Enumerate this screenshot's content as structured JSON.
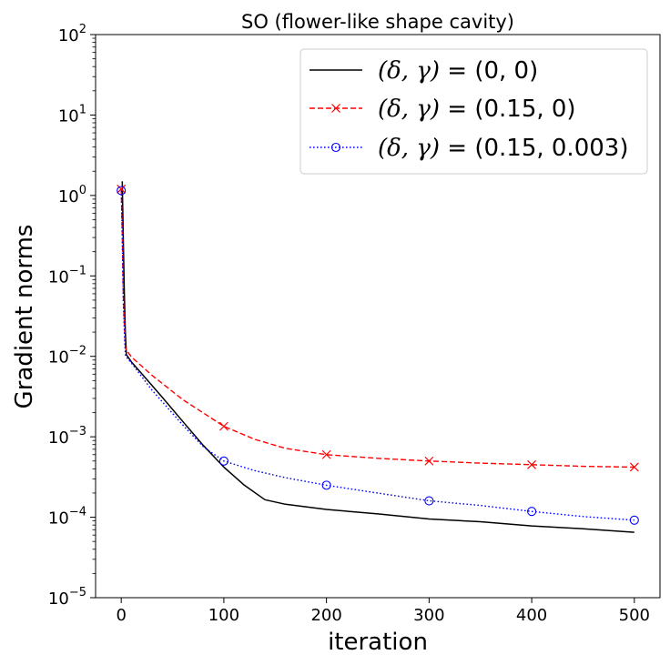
{
  "chart_data": {
    "type": "line",
    "title": "SO (flower-like shape cavity)",
    "xlabel": "iteration",
    "ylabel": "Gradient norms",
    "yscale": "log",
    "xlim": [
      -25,
      525
    ],
    "ylim": [
      1e-05,
      100
    ],
    "x_ticks": [
      0,
      100,
      200,
      300,
      400,
      500
    ],
    "x_tick_labels": [
      "0",
      "100",
      "200",
      "300",
      "400",
      "500"
    ],
    "y_ticks": [
      {
        "value": 100,
        "base": "10",
        "exp": "2"
      },
      {
        "value": 10,
        "base": "10",
        "exp": "1"
      },
      {
        "value": 1,
        "base": "10",
        "exp": "0"
      },
      {
        "value": 0.1,
        "base": "10",
        "exp": "−1"
      },
      {
        "value": 0.01,
        "base": "10",
        "exp": "−2"
      },
      {
        "value": 0.001,
        "base": "10",
        "exp": "−3"
      },
      {
        "value": 0.0001,
        "base": "10",
        "exp": "−4"
      },
      {
        "value": 1e-05,
        "base": "10",
        "exp": "−5"
      }
    ],
    "legend_position": "top-right",
    "series": [
      {
        "name": "(δ, γ) = (0, 0)",
        "legend_label": {
          "vars": "(δ, γ)",
          "eq": " = ",
          "val": "(0, 0)"
        },
        "color": "#000000",
        "line_style": "solid",
        "marker": "none",
        "x": [
          1,
          2,
          3,
          4,
          5,
          10,
          20,
          40,
          60,
          80,
          100,
          120,
          140,
          160,
          200,
          250,
          300,
          350,
          400,
          450,
          500
        ],
        "y": [
          1.5,
          0.3,
          0.06,
          0.02,
          0.0105,
          0.0085,
          0.0061,
          0.0031,
          0.00155,
          0.00078,
          0.00042,
          0.00025,
          0.000165,
          0.000145,
          0.000125,
          0.00011,
          9.5e-05,
          8.8e-05,
          7.8e-05,
          7.2e-05,
          6.5e-05
        ]
      },
      {
        "name": "(δ, γ) = (0.15, 0)",
        "legend_label": {
          "vars": "(δ, γ)",
          "eq": " = ",
          "val": "(0.15, 0)"
        },
        "color": "#ff0000",
        "line_style": "dashed",
        "marker": "x",
        "x": [
          0,
          1,
          2,
          3,
          4,
          5,
          10,
          30,
          60,
          100,
          130,
          160,
          200,
          250,
          300,
          350,
          400,
          450,
          500
        ],
        "y": [
          1.2,
          0.35,
          0.06,
          0.025,
          0.013,
          0.012,
          0.0098,
          0.0058,
          0.0029,
          0.00135,
          0.00093,
          0.00072,
          0.0006,
          0.00054,
          0.0005,
          0.00047,
          0.00045,
          0.00043,
          0.00042
        ],
        "marker_x": [
          0,
          100,
          200,
          300,
          400,
          500
        ],
        "marker_y": [
          1.2,
          0.00135,
          0.0006,
          0.0005,
          0.00045,
          0.00042
        ]
      },
      {
        "name": "(δ, γ) = (0.15, 0.003)",
        "legend_label": {
          "vars": "(δ, γ)",
          "eq": " = ",
          "val": "(0.15, 0.003)"
        },
        "color": "#0000ff",
        "line_style": "dotted",
        "marker": "circle",
        "x": [
          0,
          1,
          2,
          3,
          4,
          5,
          10,
          30,
          60,
          80,
          100,
          130,
          160,
          200,
          250,
          300,
          350,
          400,
          450,
          500
        ],
        "y": [
          1.15,
          0.3,
          0.05,
          0.02,
          0.0105,
          0.0098,
          0.0082,
          0.0038,
          0.0014,
          0.00075,
          0.0005,
          0.00038,
          0.00031,
          0.00025,
          0.0002,
          0.00016,
          0.00014,
          0.000118,
          0.000102,
          9.2e-05
        ],
        "marker_x": [
          0,
          100,
          200,
          300,
          400,
          500
        ],
        "marker_y": [
          1.15,
          0.0005,
          0.00025,
          0.00016,
          0.000118,
          9.2e-05
        ]
      }
    ]
  }
}
